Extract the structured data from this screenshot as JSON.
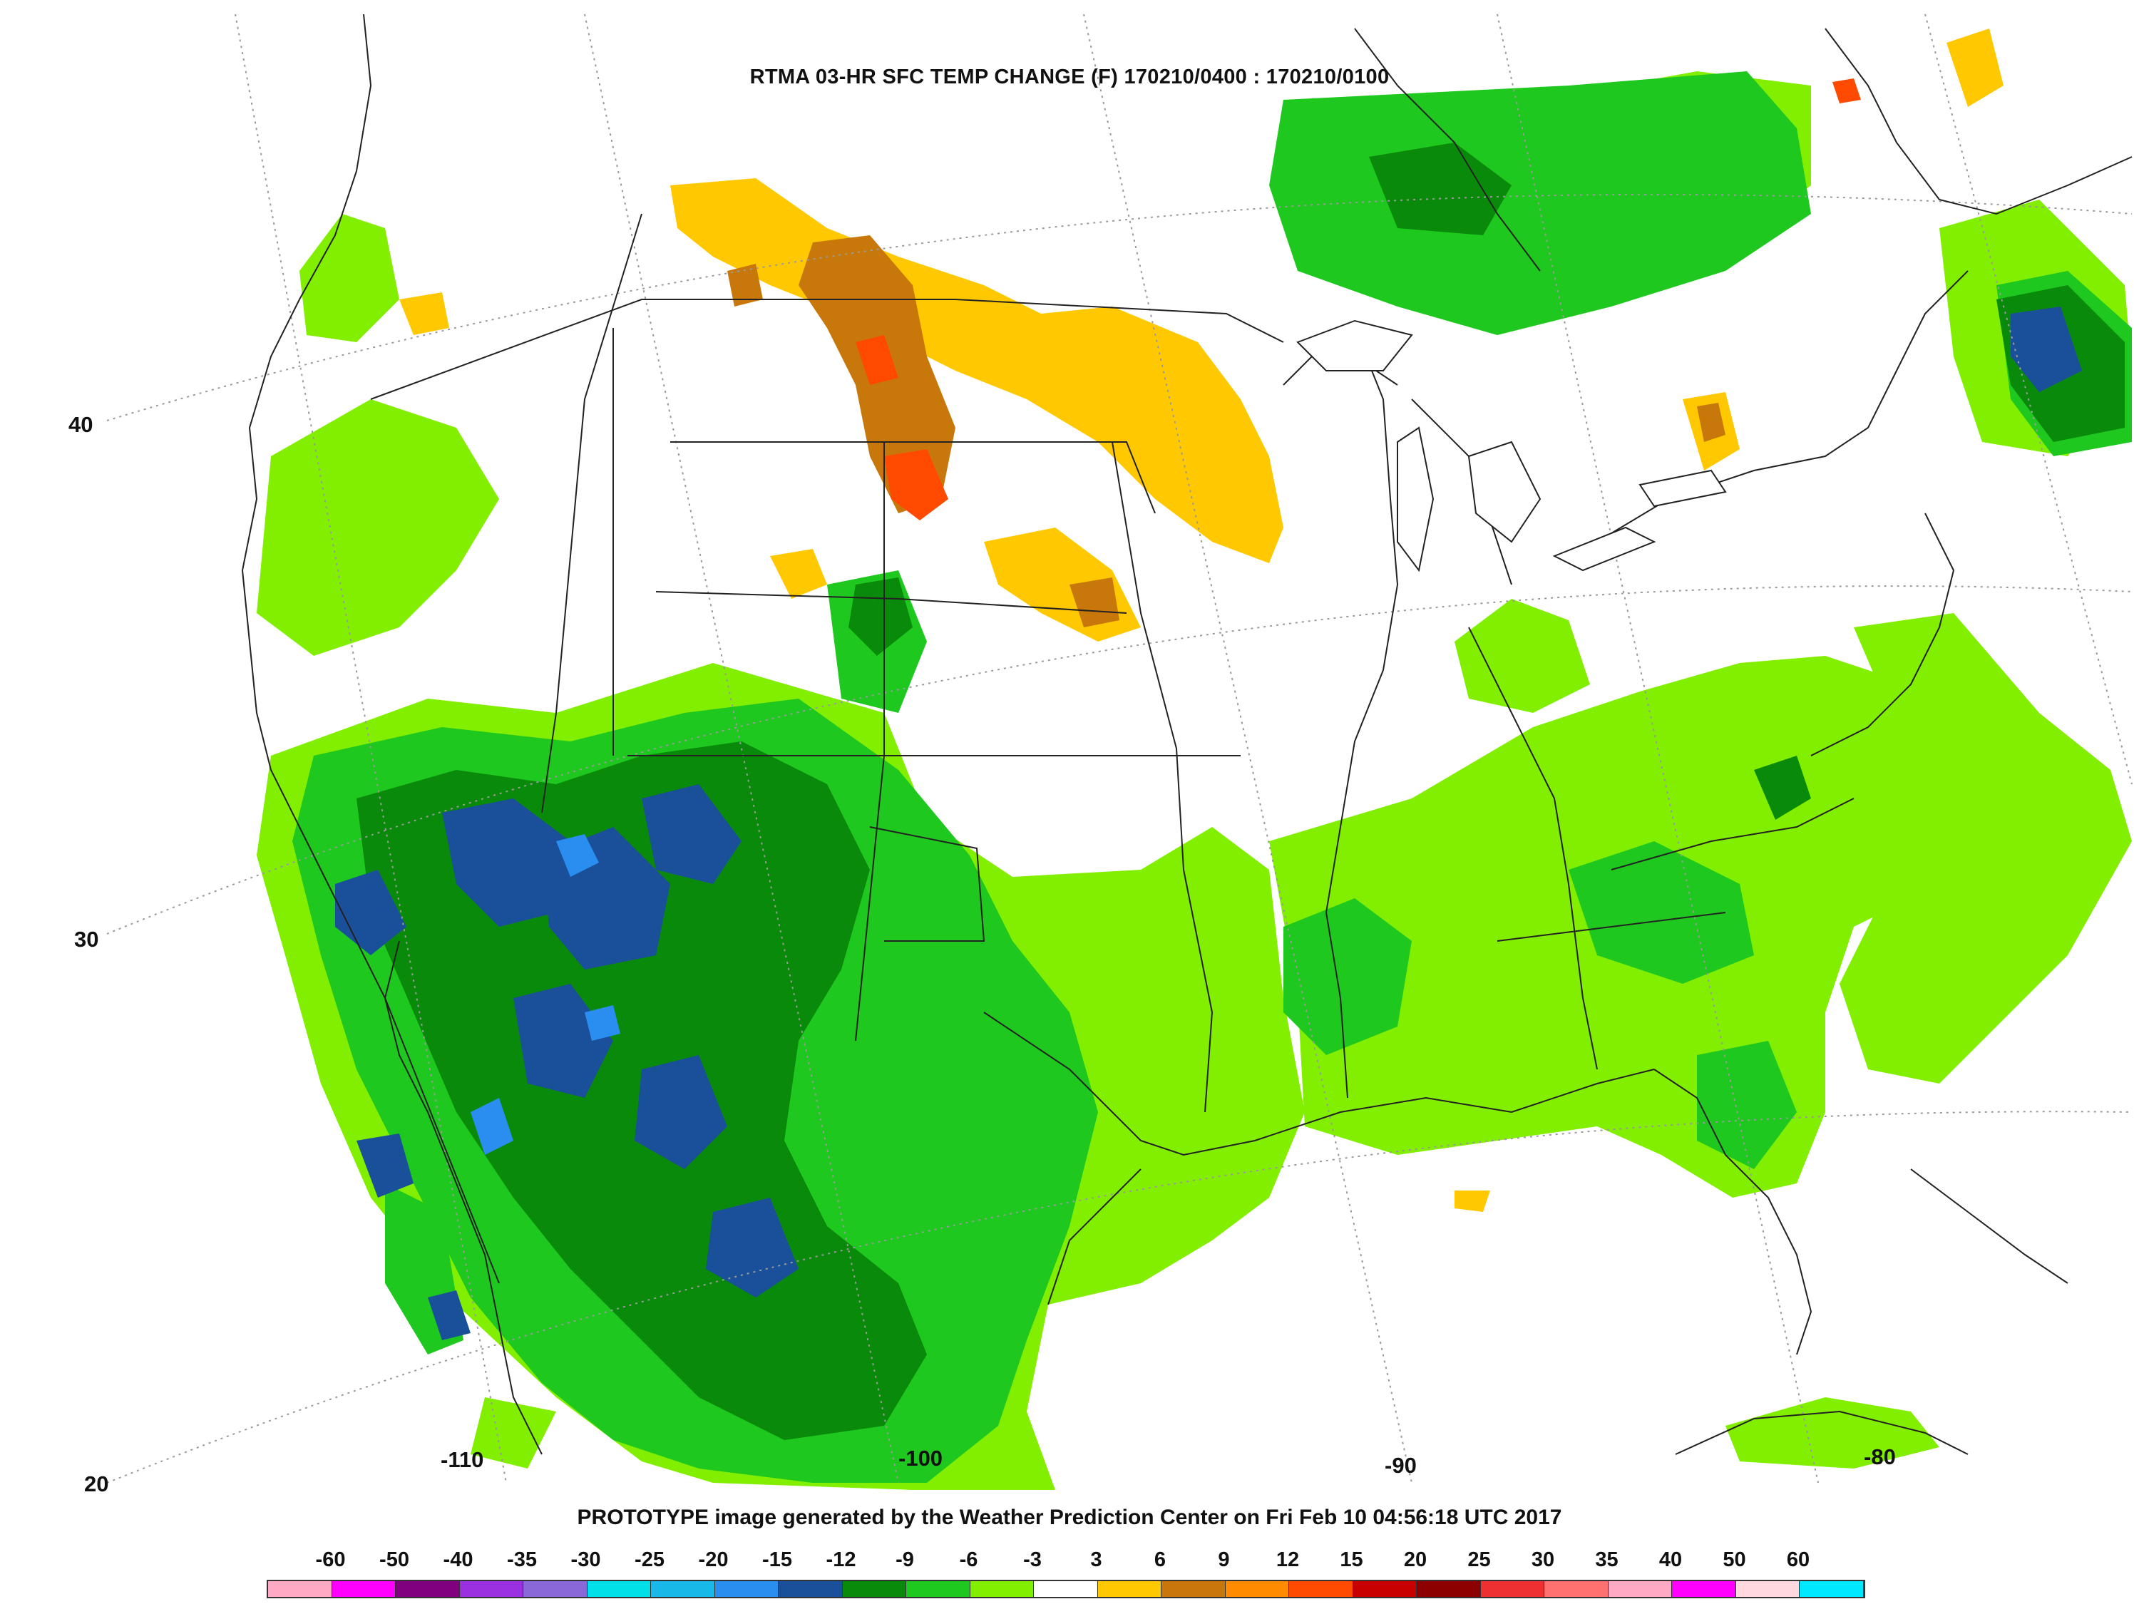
{
  "title": "RTMA 03-HR SFC TEMP CHANGE (F) 170210/0400 : 170210/0100",
  "footer": "PROTOTYPE image generated by the Weather Prediction Center on Fri Feb 10 04:56:18 UTC 2017",
  "latitude_labels": [
    "40",
    "30",
    "20"
  ],
  "longitude_labels": [
    "-110",
    "-100",
    "-90",
    "-80"
  ],
  "legend": {
    "labels": [
      "-60",
      "-50",
      "-40",
      "-35",
      "-30",
      "-25",
      "-20",
      "-15",
      "-12",
      "-9",
      "-6",
      "-3",
      "3",
      "6",
      "9",
      "12",
      "15",
      "20",
      "25",
      "30",
      "35",
      "40",
      "50",
      "60"
    ],
    "colors": [
      "#ffaac4",
      "#ff00ff",
      "#800080",
      "#9a30e0",
      "#8a68d8",
      "#00e0e8",
      "#18b8e8",
      "#2a8ef0",
      "#1a4f9a",
      "#0a8a0a",
      "#1ec81e",
      "#82ee00",
      "#ffffff",
      "#ffc800",
      "#c8780a",
      "#ff8c00",
      "#ff4a00",
      "#c80000",
      "#8c0000",
      "#ee3030",
      "#ff7070",
      "#ffaac4",
      "#ff00ff",
      "#ffd8e0",
      "#00e8ff"
    ]
  },
  "colors": {
    "decrease_light": "#82ee00",
    "decrease_mid": "#1ec81e",
    "decrease_strong": "#0a8a0a",
    "decrease_max": "#1a4f9a",
    "increase_light": "#ffc800",
    "increase_mid": "#c8780a",
    "increase_strong": "#ff4a00"
  }
}
